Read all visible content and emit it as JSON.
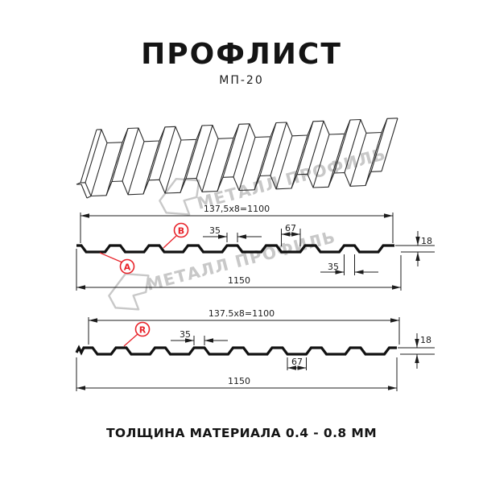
{
  "header": {
    "title": "ПРОФЛИСТ",
    "subtitle": "МП-20"
  },
  "watermark": {
    "brand_text": "МЕТАЛЛ ПРОФИЛЬ",
    "color": "#c8c8c8"
  },
  "colors": {
    "accent_red": "#e8232a",
    "line": "#1c1c1c",
    "background": "#ffffff"
  },
  "diagram1": {
    "label_a": "A",
    "label_b": "B",
    "dim_pitch_total": "137,5x8=1100",
    "dim_rib_top_width": "35",
    "dim_valley_width": "67",
    "dim_height": "18",
    "dim_rib_bottom_width": "35",
    "dim_overall_width": "1150"
  },
  "diagram2": {
    "label_r": "R",
    "dim_pitch_total": "137.5x8=1100",
    "dim_rib_top_width": "35",
    "dim_height": "18",
    "dim_valley_width": "67",
    "dim_overall_width": "1150"
  },
  "footer": {
    "material_thickness": "ТОЛЩИНА МАТЕРИАЛА 0.4 - 0.8 ММ"
  }
}
